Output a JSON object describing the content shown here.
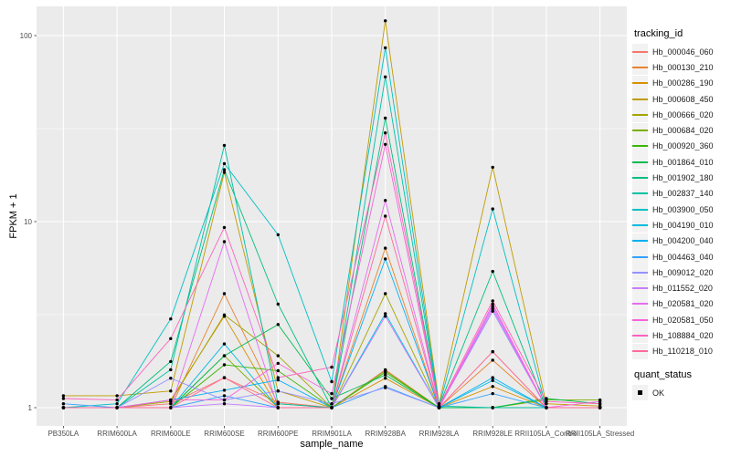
{
  "chart_data": {
    "type": "line",
    "title": "",
    "xlabel": "sample_name",
    "ylabel": "FPKM + 1",
    "y_scale": "log10",
    "ylim": [
      0.8,
      145
    ],
    "grid": true,
    "legend_position": "right",
    "x_categories": [
      "PB350LA",
      "RRIM600LA",
      "RRIM600LE",
      "RRIM600SE",
      "RRIM600PE",
      "RRIM901LA",
      "RRIM928BA",
      "RRIM928LA",
      "RRIM928LE",
      "RRII105LA_Control",
      "RRII105LA_Stressed"
    ],
    "y_ticks": [
      1,
      10,
      100
    ],
    "y_minor_ticks": [
      3.162,
      31.62
    ],
    "legend": {
      "tracking_title": "tracking_id",
      "quant_title": "quant_status",
      "quant_items": [
        {
          "label": "OK"
        }
      ]
    },
    "style": {
      "panel_bg": "#EBEBEB",
      "grid_color": "#FFFFFF",
      "tick_text_color": "#4D4D4D",
      "tick_mark_color": "#333333",
      "point_color": "#000000",
      "key_bg": "#F2F2F2"
    },
    "series": [
      {
        "name": "Hb_000046_060",
        "color": "#F8766D",
        "values": [
          1.0,
          1.0,
          1.05,
          1.45,
          1.07,
          1.0,
          1.6,
          1.0,
          2.0,
          1.0,
          1.0
        ]
      },
      {
        "name": "Hb_000130_210",
        "color": "#EA8331",
        "values": [
          1.0,
          1.0,
          1.0,
          4.1,
          1.05,
          1.0,
          7.2,
          1.0,
          1.8,
          1.0,
          1.0
        ]
      },
      {
        "name": "Hb_000286_190",
        "color": "#D89000",
        "values": [
          1.0,
          1.0,
          1.1,
          3.1,
          1.0,
          1.0,
          1.44,
          1.0,
          1.3,
          1.0,
          1.0
        ]
      },
      {
        "name": "Hb_000608_450",
        "color": "#C09B00",
        "values": [
          1.16,
          1.16,
          1.23,
          18.4,
          1.23,
          1.0,
          120.0,
          1.05,
          19.6,
          1.05,
          1.02
        ]
      },
      {
        "name": "Hb_000666_020",
        "color": "#A3A500",
        "values": [
          1.0,
          1.0,
          1.08,
          3.15,
          1.9,
          1.0,
          4.1,
          1.0,
          1.0,
          1.0,
          1.0
        ]
      },
      {
        "name": "Hb_000684_020",
        "color": "#7CAE00",
        "values": [
          1.0,
          1.0,
          1.0,
          1.9,
          1.0,
          1.0,
          1.58,
          1.0,
          1.0,
          1.1,
          1.1
        ]
      },
      {
        "name": "Hb_000920_360",
        "color": "#39B600",
        "values": [
          1.0,
          1.0,
          1.0,
          1.7,
          1.58,
          1.0,
          1.55,
          1.0,
          1.0,
          1.0,
          1.0
        ]
      },
      {
        "name": "Hb_001864_010",
        "color": "#00BB4E",
        "values": [
          1.0,
          1.0,
          1.0,
          1.9,
          2.8,
          1.12,
          1.5,
          1.0,
          1.0,
          1.12,
          1.05
        ]
      },
      {
        "name": "Hb_001902_180",
        "color": "#00BF7D",
        "values": [
          1.0,
          1.0,
          1.77,
          19.0,
          3.6,
          1.0,
          36.0,
          1.02,
          5.4,
          1.0,
          1.0
        ]
      },
      {
        "name": "Hb_002837_140",
        "color": "#00C1A3",
        "values": [
          1.0,
          1.0,
          1.6,
          25.7,
          1.05,
          1.0,
          60.0,
          1.02,
          1.0,
          1.0,
          1.0
        ]
      },
      {
        "name": "Hb_003900_050",
        "color": "#00BFC4",
        "values": [
          1.0,
          1.05,
          3.0,
          20.5,
          8.5,
          1.38,
          86.0,
          1.02,
          11.7,
          1.0,
          1.0
        ]
      },
      {
        "name": "Hb_004190_010",
        "color": "#00BAE0",
        "values": [
          1.0,
          1.0,
          1.0,
          2.2,
          1.0,
          1.0,
          3.2,
          1.0,
          1.4,
          1.0,
          1.0
        ]
      },
      {
        "name": "Hb_004200_040",
        "color": "#00B0F6",
        "values": [
          1.0,
          1.0,
          1.1,
          1.24,
          1.41,
          1.0,
          6.3,
          1.0,
          1.45,
          1.0,
          1.0
        ]
      },
      {
        "name": "Hb_004463_040",
        "color": "#35A2FF",
        "values": [
          1.05,
          1.0,
          1.0,
          1.16,
          1.0,
          1.0,
          1.3,
          1.0,
          1.19,
          1.0,
          1.0
        ]
      },
      {
        "name": "Hb_009012_020",
        "color": "#9590FF",
        "values": [
          1.0,
          1.0,
          1.44,
          1.1,
          1.23,
          1.05,
          1.28,
          1.0,
          3.3,
          1.0,
          1.0
        ]
      },
      {
        "name": "Hb_011552_020",
        "color": "#C77CFF",
        "values": [
          1.0,
          1.0,
          1.0,
          1.05,
          1.0,
          1.0,
          3.1,
          1.0,
          3.5,
          1.0,
          1.0
        ]
      },
      {
        "name": "Hb_020581_020",
        "color": "#E76BF3",
        "values": [
          1.0,
          1.0,
          1.0,
          7.8,
          1.0,
          1.0,
          13.0,
          1.0,
          3.4,
          1.0,
          1.0
        ]
      },
      {
        "name": "Hb_020581_050",
        "color": "#FA62DB",
        "values": [
          1.0,
          1.0,
          1.1,
          1.1,
          1.73,
          1.19,
          26.0,
          1.0,
          3.6,
          1.0,
          1.08
        ]
      },
      {
        "name": "Hb_108884_020",
        "color": "#FF62BC",
        "values": [
          1.12,
          1.1,
          2.35,
          9.3,
          1.45,
          1.65,
          30.0,
          1.02,
          3.75,
          1.08,
          1.05
        ]
      },
      {
        "name": "Hb_110218_010",
        "color": "#FF6A98",
        "values": [
          1.0,
          1.0,
          1.0,
          1.45,
          1.0,
          1.0,
          10.7,
          1.0,
          2.0,
          1.0,
          1.0
        ]
      }
    ]
  }
}
